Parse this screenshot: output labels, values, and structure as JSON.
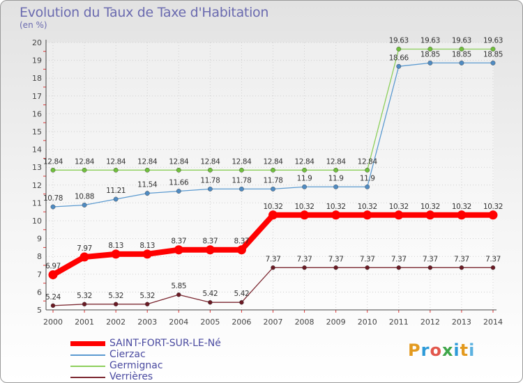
{
  "header": {
    "title": "Evolution du Taux de Taxe d'Habitation",
    "unit": "(en %)"
  },
  "brand": {
    "text": "Proxiti",
    "colors": [
      "#e39a1f",
      "#2d9ad8",
      "#e2574c",
      "#3fa64a",
      "#2d9ad8",
      "#e39a1f",
      "#5bb1e0"
    ]
  },
  "chart_data": {
    "type": "line",
    "x": [
      "2000",
      "2001",
      "2002",
      "2003",
      "2004",
      "2005",
      "2006",
      "2007",
      "2008",
      "2009",
      "2010",
      "2011",
      "2012",
      "2013",
      "2014"
    ],
    "ylim": [
      5,
      20
    ],
    "yticks": [
      "5",
      "6",
      "7",
      "8",
      "9",
      "10",
      "11",
      "12",
      "13",
      "14",
      "15",
      "16",
      "17",
      "18",
      "19",
      "20"
    ],
    "legend_position": "bottom-left",
    "series": [
      {
        "name": "Germignac",
        "color": "#8ccf5a",
        "marker": "#70bf3c",
        "values": [
          12.84,
          12.84,
          12.84,
          12.84,
          12.84,
          12.84,
          12.84,
          12.84,
          12.84,
          12.84,
          12.84,
          19.63,
          19.63,
          19.63,
          19.63
        ],
        "labels": [
          "12.84",
          "12.84",
          "12.84",
          "12.84",
          "12.84",
          "12.84",
          "12.84",
          "12.84",
          "12.84",
          "12.84",
          "12.84",
          "19.63",
          "19.63",
          "19.63",
          "19.63"
        ]
      },
      {
        "name": "Cierzac",
        "color": "#5b9ad0",
        "marker": "#4f8bc2",
        "values": [
          10.78,
          10.88,
          11.21,
          11.54,
          11.66,
          11.78,
          11.78,
          11.78,
          11.9,
          11.9,
          11.9,
          18.66,
          18.85,
          18.85,
          18.85
        ],
        "labels": [
          "10.78",
          "10.88",
          "11.21",
          "11.54",
          "11.66",
          "11.78",
          "11.78",
          "11.78",
          "11.9",
          "11.9",
          "11.9",
          "18.66",
          "18.85",
          "18.85",
          "18.85"
        ]
      },
      {
        "name": "SAINT-FORT-SUR-LE-Né",
        "color": "#ff0000",
        "marker": "#ff0000",
        "values": [
          6.97,
          7.97,
          8.13,
          8.13,
          8.37,
          8.37,
          8.37,
          10.32,
          10.32,
          10.32,
          10.32,
          10.32,
          10.32,
          10.32,
          10.32
        ],
        "labels": [
          "6.97",
          "7.97",
          "8.13",
          "8.13",
          "8.37",
          "8.37",
          "8.37",
          "10.32",
          "10.32",
          "10.32",
          "10.32",
          "10.32",
          "10.32",
          "10.32",
          "10.32"
        ]
      },
      {
        "name": "Verrières",
        "color": "#7b2730",
        "marker": "#6a1a24",
        "values": [
          5.24,
          5.32,
          5.32,
          5.32,
          5.85,
          5.42,
          5.42,
          7.37,
          7.37,
          7.37,
          7.37,
          7.37,
          7.37,
          7.37,
          7.37
        ],
        "labels": [
          "5.24",
          "5.32",
          "5.32",
          "5.32",
          "5.85",
          "5.42",
          "5.42",
          "7.37",
          "7.37",
          "7.37",
          "7.37",
          "7.37",
          "7.37",
          "7.37",
          "7.37"
        ]
      }
    ],
    "legend": [
      {
        "name": "SAINT-FORT-SUR-LE-Né",
        "color": "#ff0000"
      },
      {
        "name": "Cierzac",
        "color": "#5b9ad0"
      },
      {
        "name": "Germignac",
        "color": "#8ccf5a"
      },
      {
        "name": "Verrières",
        "color": "#7b2730"
      }
    ]
  }
}
